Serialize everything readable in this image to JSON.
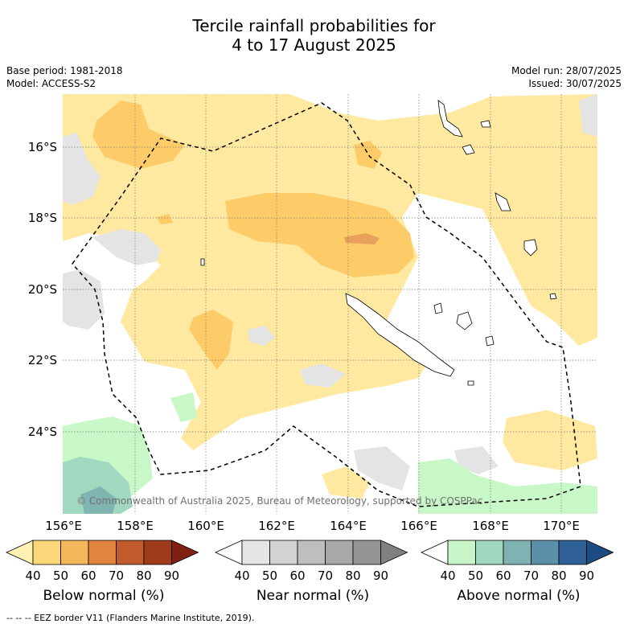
{
  "title": {
    "line1": "Tercile rainfall probabilities for",
    "line2": "4 to 17 August 2025"
  },
  "meta": {
    "base_period": "Base period: 1981-2018",
    "model": "Model: ACCESS-S2",
    "model_run": "Model run: 28/07/2025",
    "issued": "Issued: 30/07/2025"
  },
  "map": {
    "lon_labels": [
      "156°E",
      "158°E",
      "160°E",
      "162°E",
      "164°E",
      "166°E",
      "168°E",
      "170°E"
    ],
    "lat_labels": [
      "16°S",
      "18°S",
      "20°S",
      "22°S",
      "24°S"
    ],
    "copyright": "© Commonwealth of Australia 2025, Bureau of Meteorology, supported by COSPPac",
    "lon_range": [
      155.0,
      171.0
    ],
    "lat_range": [
      -26.5,
      -14.7
    ]
  },
  "colorbars": [
    {
      "caption": "Below normal (%)",
      "ticks": [
        "40",
        "50",
        "60",
        "70",
        "80",
        "90"
      ],
      "colors": [
        "#fff0b4",
        "#fdd87a",
        "#f4b85c",
        "#e08440",
        "#c05c2c",
        "#a03c1c",
        "#802010"
      ]
    },
    {
      "caption": "Near normal (%)",
      "ticks": [
        "40",
        "50",
        "60",
        "70",
        "80",
        "90"
      ],
      "colors": [
        "#ffffff",
        "#e6e6e6",
        "#d2d2d2",
        "#bebebe",
        "#a8a8a8",
        "#949494",
        "#808080"
      ]
    },
    {
      "caption": "Above normal (%)",
      "ticks": [
        "40",
        "50",
        "60",
        "70",
        "80",
        "90"
      ],
      "colors": [
        "#ffffff",
        "#c8f5c8",
        "#a0d8bf",
        "#7fb3b3",
        "#5c8fa8",
        "#2e6096",
        "#1c4c82"
      ]
    }
  ],
  "legend_footer": "-- -- -- EEZ border V11 (Flanders Marine Institute, 2019).",
  "colors": {
    "below_40_50": "#ffe8a0",
    "below_50_60": "#fdcc68",
    "below_60_70": "#e8a05a",
    "near_40_50": "#e4e4e4",
    "above_40_50": "#c8f8c8",
    "above_50_60": "#a0d8c0",
    "above_60_70": "#80b4b0"
  }
}
